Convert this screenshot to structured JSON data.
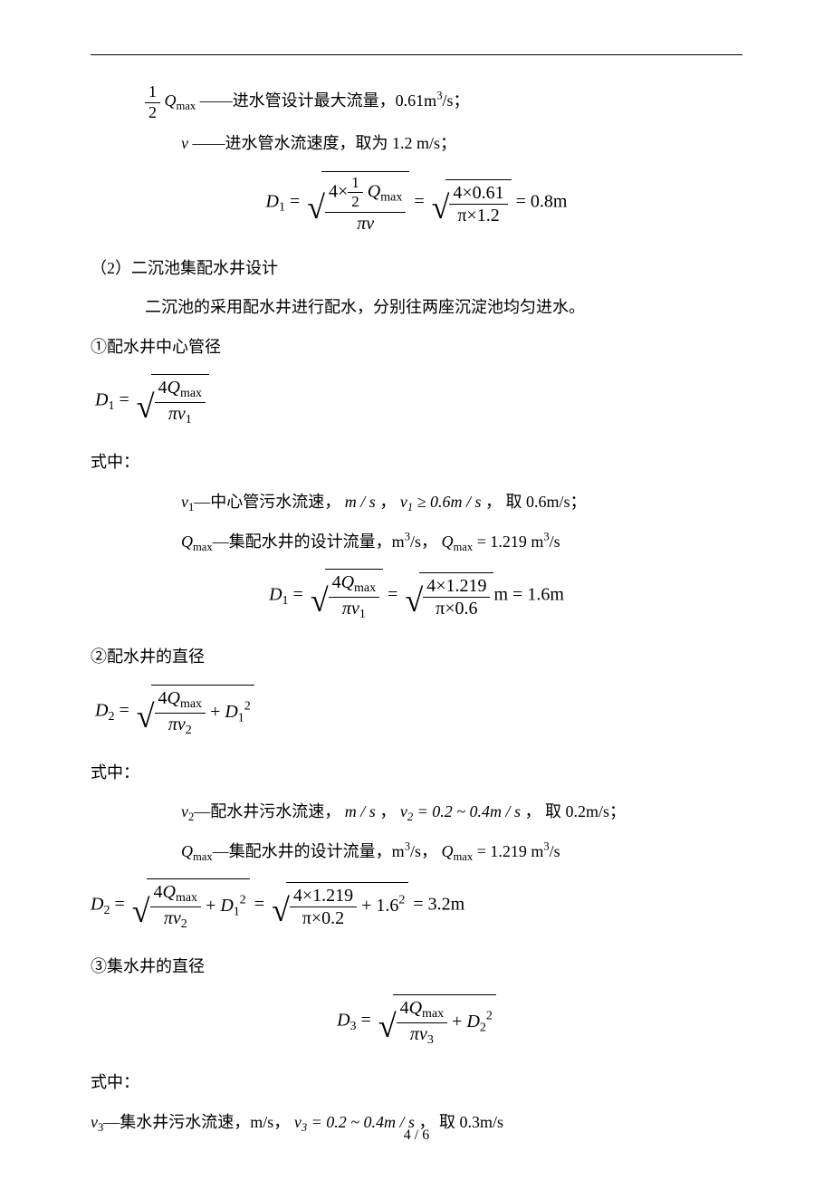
{
  "p1_a": "进水管设计最大流量，0.61m",
  "p1_b": "/s；",
  "p2_a": "进水管水流速度，取为 1.2 m/s；",
  "eqA_rhs": "= 0.8m",
  "eqA_num2": "4×0.61",
  "eqA_den2": "π×1.2",
  "h2": "（2）二沉池集配水井设计",
  "p3": "二沉池的采用配水井进行配水，分别往两座沉淀池均匀进水。",
  "p4": "①配水井中心管径",
  "label_shizhong": "式中：",
  "p5_a": "—中心管污水流速，",
  "p5_b": "， 取 0.6m/s；",
  "p5_v1cond": "v₁ ≥ 0.6m / s",
  "p6_a": "—集配水井的设计流量，m",
  "p6_b": "/s，",
  "p6_c": " = 1.219 m",
  "p6_d": "/s",
  "eqB_num2": "4×1.219",
  "eqB_den2": "π×0.6",
  "eqB_rhs": "m = 1.6m",
  "p7": "②配水井的直径",
  "p8_a": "—配水井污水流速，",
  "p8_b": "， 取 0.2m/s；",
  "p8_v2cond": "v₂ = 0.2 ~ 0.4m / s",
  "eqC_num2": "4×1.219",
  "eqC_den2": "π×0.2",
  "eqC_add": "+ 1.6",
  "eqC_rhs": " = 3.2m",
  "p9": "③集水井的直径",
  "p10_a": "—集水井污水流速，m/s，",
  "p10_b": "， 取 0.3m/s",
  "p10_v3cond": "v₃ = 0.2 ~ 0.4m / s",
  "pagenum": "4 / 6",
  "sym": {
    "Qmax": "Q",
    "max": "max",
    "half": "1",
    "two": "2",
    "v": "v",
    "D1": "D",
    "pi": "π",
    "four": "4",
    "ms": "m / s"
  }
}
